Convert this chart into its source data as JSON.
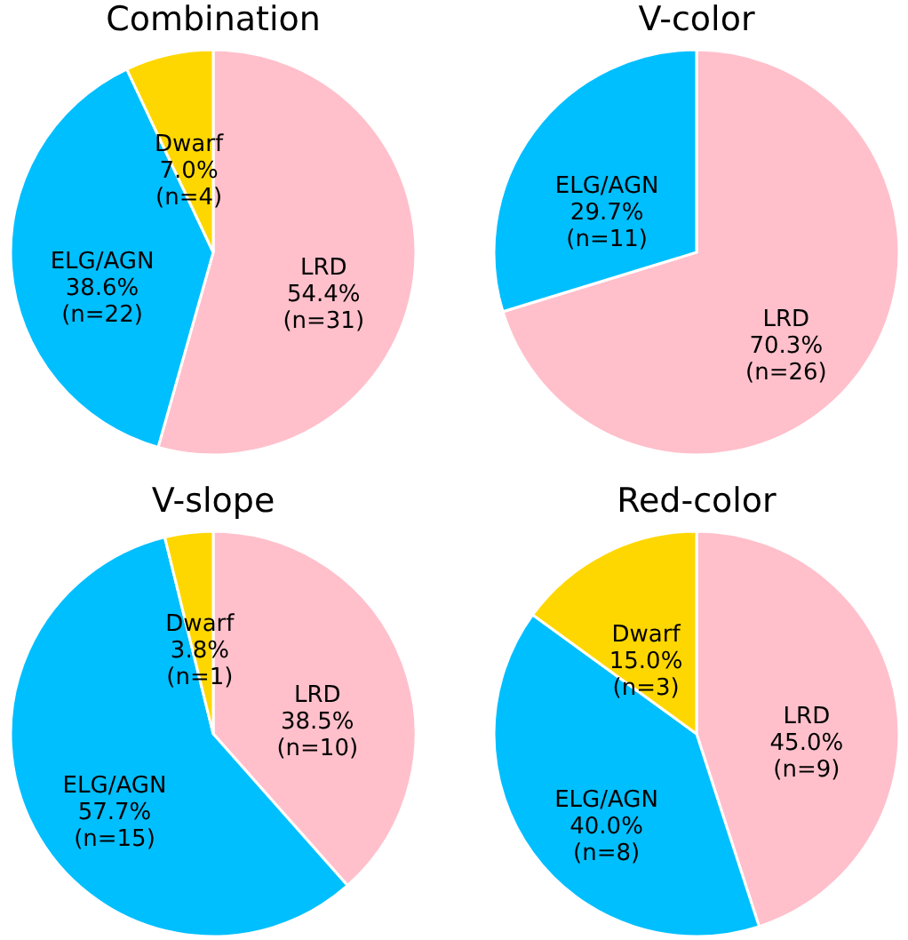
{
  "chart_data": [
    {
      "type": "pie",
      "title": "Combination",
      "categories": [
        "LRD",
        "ELG/AGN",
        "Dwarf"
      ],
      "values": [
        31,
        22,
        4
      ],
      "colors": [
        "#ffc0cb",
        "#00bfff",
        "#ffd700"
      ],
      "value_labels": [
        "54.4%\n(n=31)",
        "38.6%\n(n=22)",
        "7.0%\n(n=4)"
      ],
      "legend": false
    },
    {
      "type": "pie",
      "title": "V-color",
      "categories": [
        "LRD",
        "ELG/AGN"
      ],
      "values": [
        26,
        11
      ],
      "colors": [
        "#ffc0cb",
        "#00bfff"
      ],
      "value_labels": [
        "70.3%\n(n=26)",
        "29.7%\n(n=11)"
      ],
      "legend": false
    },
    {
      "type": "pie",
      "title": "V-slope",
      "categories": [
        "LRD",
        "ELG/AGN",
        "Dwarf"
      ],
      "values": [
        10,
        15,
        1
      ],
      "colors": [
        "#ffc0cb",
        "#00bfff",
        "#ffd700"
      ],
      "value_labels": [
        "38.5%\n(n=10)",
        "57.7%\n(n=15)",
        "3.8%\n(n=1)"
      ],
      "legend": false
    },
    {
      "type": "pie",
      "title": "Red-color",
      "categories": [
        "LRD",
        "ELG/AGN",
        "Dwarf"
      ],
      "values": [
        9,
        8,
        3
      ],
      "colors": [
        "#ffc0cb",
        "#00bfff",
        "#ffd700"
      ],
      "value_labels": [
        "45.0%\n(n=9)",
        "40.0%\n(n=8)",
        "15.0%\n(n=3)"
      ],
      "legend": false
    }
  ]
}
